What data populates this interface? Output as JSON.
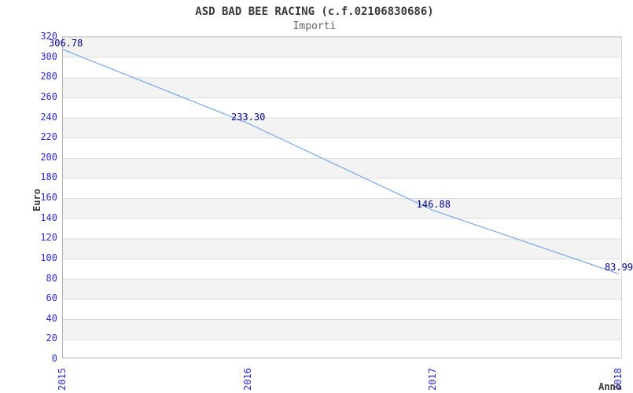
{
  "header": {
    "title": "ASD BAD BEE RACING (c.f.02106830686)",
    "subtitle": "Importi"
  },
  "chart_data": {
    "type": "line",
    "title": "ASD BAD BEE RACING (c.f.02106830686)",
    "subtitle": "Importi",
    "xlabel": "Anno",
    "ylabel": "Euro",
    "categories": [
      "2015",
      "2016",
      "2017",
      "2018"
    ],
    "values": [
      306.78,
      233.3,
      146.88,
      83.99
    ],
    "data_labels": [
      "306.78",
      "233.30",
      "146.88",
      "83.99"
    ],
    "ylim": [
      0,
      320
    ],
    "y_tick_step": 20,
    "grid": "horizontal-bands-20-units",
    "legend": "none",
    "colors": {
      "line": "#78aae8",
      "tick_label": "#2b2bd5",
      "data_label": "#00008b",
      "band_gray": "#f3f3f3",
      "band_white": "#ffffff",
      "gridline": "#dcdcdc",
      "axis_line": "#b3b3b3",
      "title_text": "#3a3a3a",
      "subtitle_text": "#666666"
    }
  }
}
